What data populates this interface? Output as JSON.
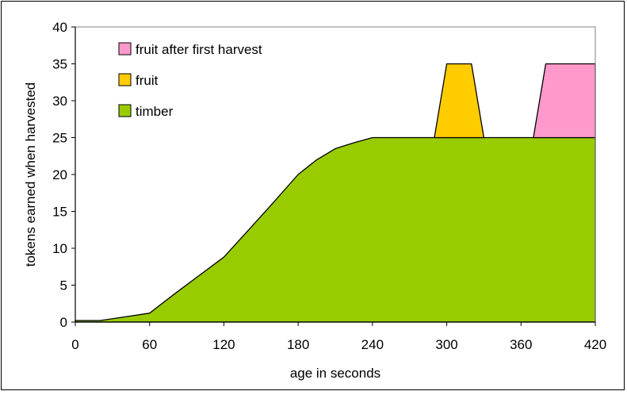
{
  "chart_data": {
    "type": "area",
    "title": "",
    "xlabel": "age in seconds",
    "ylabel": "tokens earned when harvested",
    "xlim": [
      0,
      420
    ],
    "ylim": [
      0,
      40
    ],
    "xticks": [
      0,
      60,
      120,
      180,
      240,
      300,
      360,
      420
    ],
    "yticks": [
      0,
      5,
      10,
      15,
      20,
      25,
      30,
      35,
      40
    ],
    "xtick_labels": [
      "0",
      "60",
      "120",
      "180",
      "240",
      "300",
      "360",
      "420"
    ],
    "ytick_labels": [
      "0",
      "5",
      "10",
      "15",
      "20",
      "25",
      "30",
      "35",
      "40"
    ],
    "grid": false,
    "legend_position": "top-left",
    "series": [
      {
        "name": "fruit after first harvest",
        "color": "#ff99cc",
        "x": [
          370,
          380,
          420,
          420
        ],
        "y": [
          25,
          35,
          35,
          25
        ],
        "baseline": 25
      },
      {
        "name": "fruit",
        "color": "#ffcc00",
        "x": [
          290,
          300,
          320,
          330
        ],
        "y": [
          25,
          35,
          35,
          25
        ],
        "baseline": 25
      },
      {
        "name": "timber",
        "color": "#99cc00",
        "x": [
          0,
          20,
          40,
          60,
          80,
          100,
          120,
          140,
          160,
          180,
          195,
          210,
          225,
          240,
          270,
          300,
          330,
          360,
          390,
          420
        ],
        "y": [
          0.2,
          0.2,
          0.7,
          1.2,
          3.8,
          6.3,
          8.8,
          12.5,
          16.2,
          20,
          22,
          23.5,
          24.3,
          25,
          25,
          25,
          25,
          25,
          25,
          25
        ],
        "baseline": 0
      }
    ]
  }
}
